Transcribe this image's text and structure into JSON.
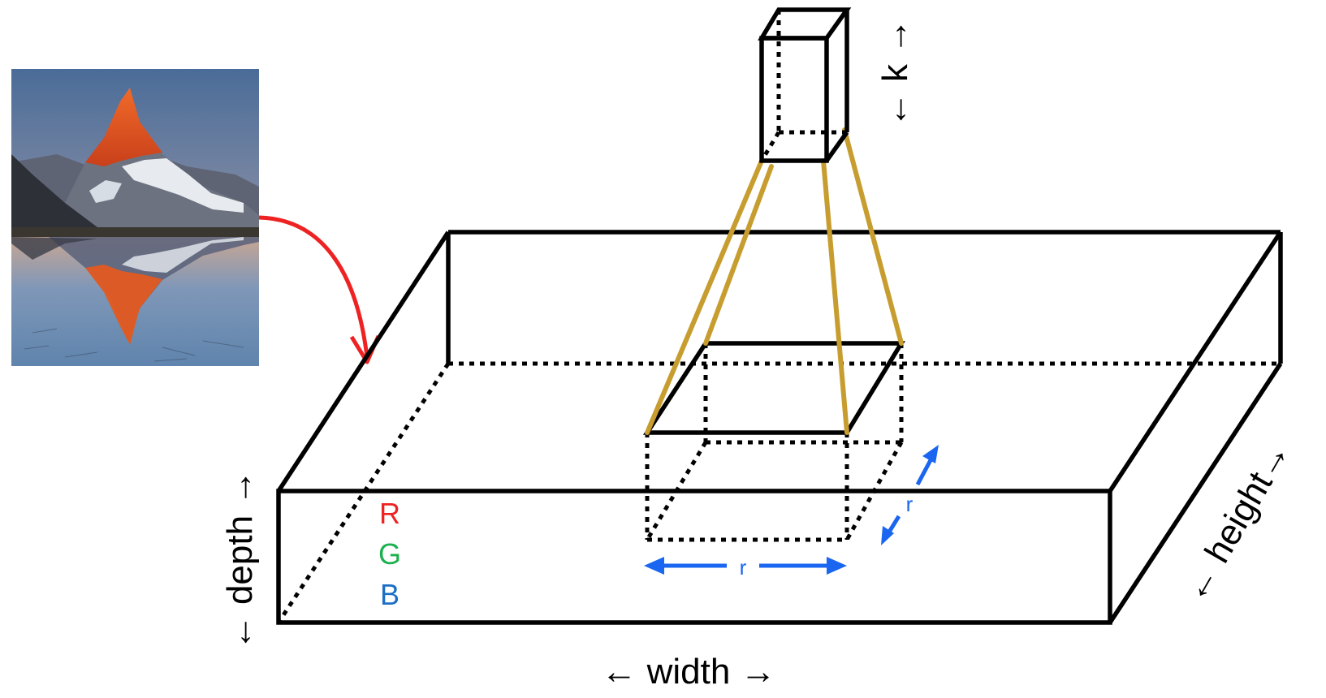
{
  "labels": {
    "width": "← width →",
    "depth": "← depth →",
    "height": "← height→",
    "k": "← k →",
    "channels": [
      "R",
      "G",
      "B"
    ],
    "r_width": "r",
    "r_height": "r"
  },
  "colors": {
    "background": "#ffffff",
    "box_stroke": "#000000",
    "arrow_red": "#ee2222",
    "projection_gold": "#c79d2f",
    "dimension_blue": "#1a66f0",
    "channel_r": "#ee2222",
    "channel_g": "#1db04f",
    "channel_b": "#1c6fc4",
    "sky": "#5f7fa8",
    "peak_orange": "#e8561c",
    "water": "#6f8fb2"
  },
  "photo": {
    "subject": "mountain-reflection-photo"
  }
}
